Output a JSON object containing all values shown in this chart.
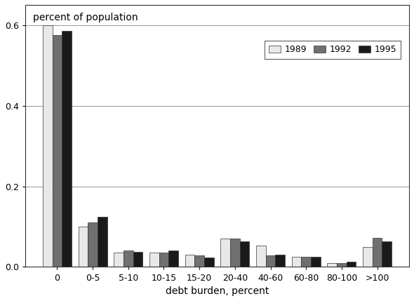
{
  "categories": [
    "0",
    "0-5",
    "5-10",
    "10-15",
    "15-20",
    "20-40",
    "40-60",
    "60-80",
    "80-100",
    ">100"
  ],
  "series": {
    "1989": [
      0.6,
      0.1,
      0.035,
      0.035,
      0.03,
      0.07,
      0.053,
      0.025,
      0.01,
      0.05
    ],
    "1992": [
      0.575,
      0.11,
      0.04,
      0.035,
      0.028,
      0.07,
      0.028,
      0.025,
      0.009,
      0.073
    ],
    "1995": [
      0.585,
      0.125,
      0.038,
      0.04,
      0.023,
      0.063,
      0.03,
      0.026,
      0.013,
      0.063
    ]
  },
  "colors": {
    "1989": "#e8e8e8",
    "1992": "#707070",
    "1995": "#1a1a1a"
  },
  "edge_color": "#333333",
  "ylabel": "percent of population",
  "xlabel": "debt burden, percent",
  "ylim": [
    0,
    0.65
  ],
  "yticks": [
    0.0,
    0.2,
    0.4,
    0.6
  ],
  "legend_labels": [
    "1989",
    "1992",
    "1995"
  ],
  "bar_width": 0.27,
  "background_color": "#ffffff",
  "label_fontsize": 10,
  "axis_fontsize": 10,
  "tick_fontsize": 9,
  "legend_fontsize": 9
}
